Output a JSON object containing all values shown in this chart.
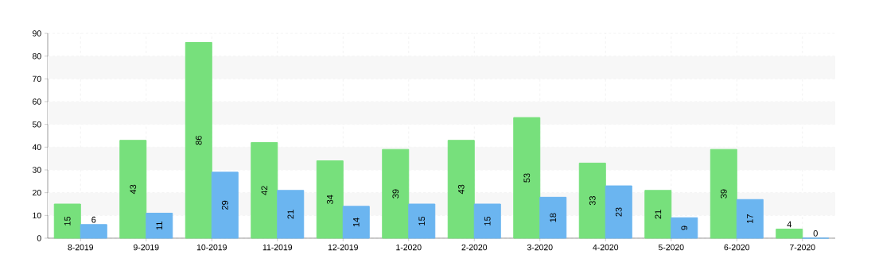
{
  "chart_data": {
    "type": "bar",
    "categories": [
      "8-2019",
      "9-2019",
      "10-2019",
      "11-2019",
      "12-2019",
      "1-2020",
      "2-2020",
      "3-2020",
      "4-2020",
      "5-2020",
      "6-2020",
      "7-2020"
    ],
    "series": [
      {
        "color": "#77e07c",
        "values": [
          15,
          43,
          86,
          42,
          34,
          39,
          43,
          53,
          33,
          21,
          39,
          4
        ]
      },
      {
        "color": "#6bb5f0",
        "values": [
          6,
          11,
          29,
          21,
          14,
          15,
          15,
          18,
          23,
          9,
          17,
          0
        ]
      }
    ],
    "ylim": [
      0,
      90
    ],
    "yticks": [
      0,
      10,
      20,
      30,
      40,
      50,
      60,
      70,
      80,
      90
    ],
    "grid": true,
    "data_labels": true,
    "bands": [
      {
        "axis": "y",
        "from": 10,
        "to": 20,
        "color": "#f7f7f7"
      },
      {
        "axis": "y",
        "from": 30,
        "to": 40,
        "color": "#f7f7f7"
      },
      {
        "axis": "y",
        "from": 50,
        "to": 60,
        "color": "#f7f7f7"
      },
      {
        "axis": "y",
        "from": 70,
        "to": 80,
        "color": "#f7f7f7"
      }
    ]
  }
}
